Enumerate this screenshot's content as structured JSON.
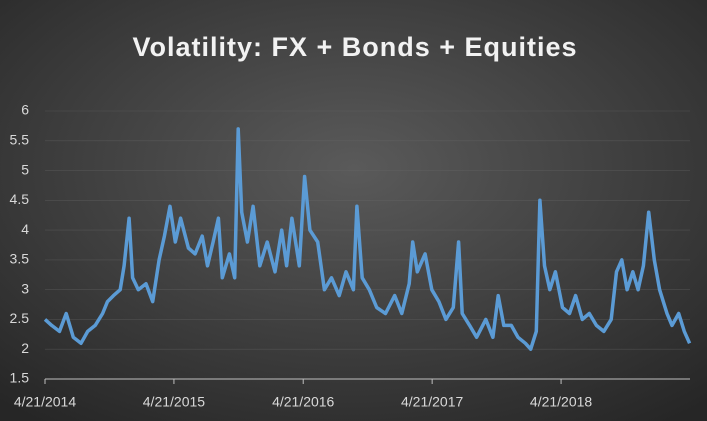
{
  "chart_data": {
    "type": "line",
    "title": "Volatility: FX + Bonds + Equities",
    "x": [
      "4/21/2014",
      "5/10/2014",
      "6/1/2014",
      "6/20/2014",
      "7/10/2014",
      "8/1/2014",
      "8/20/2014",
      "9/10/2014",
      "10/1/2014",
      "10/15/2014",
      "11/1/2014",
      "11/20/2014",
      "12/1/2014",
      "12/15/2014",
      "12/25/2014",
      "1/10/2015",
      "2/1/2015",
      "2/20/2015",
      "3/10/2015",
      "3/25/2015",
      "4/10/2015",
      "4/25/2015",
      "5/10/2015",
      "6/1/2015",
      "6/20/2015",
      "7/10/2015",
      "7/25/2015",
      "8/10/2015",
      "8/25/2015",
      "9/5/2015",
      "9/25/2015",
      "10/10/2015",
      "10/20/2015",
      "10/30/2015",
      "11/15/2015",
      "12/1/2015",
      "12/20/2015",
      "1/10/2016",
      "2/1/2016",
      "2/20/2016",
      "3/5/2016",
      "3/20/2016",
      "4/10/2016",
      "4/25/2016",
      "5/10/2016",
      "6/1/2016",
      "6/20/2016",
      "7/10/2016",
      "8/1/2016",
      "8/20/2016",
      "9/10/2016",
      "9/20/2016",
      "10/5/2016",
      "10/25/2016",
      "11/15/2016",
      "12/10/2016",
      "1/5/2017",
      "1/25/2017",
      "2/15/2017",
      "2/25/2017",
      "3/10/2017",
      "4/1/2017",
      "4/20/2017",
      "5/10/2017",
      "5/30/2017",
      "6/20/2017",
      "7/5/2017",
      "7/15/2017",
      "8/5/2017",
      "8/25/2017",
      "9/20/2017",
      "10/10/2017",
      "10/25/2017",
      "11/10/2017",
      "12/1/2017",
      "12/20/2017",
      "1/10/2018",
      "1/25/2018",
      "2/10/2018",
      "2/20/2018",
      "3/5/2018",
      "3/20/2018",
      "4/5/2018",
      "4/25/2018",
      "5/15/2018",
      "6/1/2018",
      "6/20/2018",
      "7/10/2018",
      "7/30/2018",
      "8/20/2018",
      "9/10/2018",
      "9/25/2018",
      "10/10/2018",
      "10/25/2018",
      "11/10/2018",
      "11/25/2018",
      "12/10/2018",
      "12/25/2018",
      "1/10/2019",
      "1/25/2019",
      "2/15/2019",
      "3/1/2019",
      "3/20/2019",
      "4/5/2019",
      "4/20/2019"
    ],
    "series": [
      {
        "color": "#5b9bd5",
        "values": [
          2.5,
          2.4,
          2.3,
          2.6,
          2.2,
          2.1,
          2.3,
          2.4,
          2.6,
          2.8,
          2.9,
          3.0,
          3.4,
          4.2,
          3.2,
          3.0,
          3.1,
          2.8,
          3.5,
          3.9,
          4.4,
          3.8,
          4.2,
          3.7,
          3.6,
          3.9,
          3.4,
          3.8,
          4.2,
          3.2,
          3.6,
          3.2,
          5.7,
          4.3,
          3.8,
          4.4,
          3.4,
          3.8,
          3.3,
          4.0,
          3.4,
          4.2,
          3.4,
          4.9,
          4.0,
          3.8,
          3.0,
          3.2,
          2.9,
          3.3,
          3.0,
          4.4,
          3.2,
          3.0,
          2.7,
          2.6,
          2.9,
          2.6,
          3.1,
          3.8,
          3.3,
          3.6,
          3.0,
          2.8,
          2.5,
          2.7,
          3.8,
          2.6,
          2.4,
          2.2,
          2.5,
          2.2,
          2.9,
          2.4,
          2.4,
          2.2,
          2.1,
          2.0,
          2.3,
          4.5,
          3.4,
          3.0,
          3.3,
          2.7,
          2.6,
          2.9,
          2.5,
          2.6,
          2.4,
          2.3,
          2.5,
          3.3,
          3.5,
          3.0,
          3.3,
          3.0,
          3.4,
          4.3,
          3.5,
          3.0,
          2.6,
          2.4,
          2.6,
          2.3,
          2.1
        ]
      }
    ],
    "xlim": [
      "4/21/2014",
      "4/21/2019"
    ],
    "xticks": [
      "4/21/2014",
      "4/21/2015",
      "4/21/2016",
      "4/21/2017",
      "4/21/2018"
    ],
    "ylim": [
      1.5,
      6
    ],
    "yticks": [
      1.5,
      2,
      2.5,
      3,
      3.5,
      4,
      4.5,
      5,
      {
        "value": 5.5,
        "label": "5.5"
      },
      6
    ],
    "grid": true
  }
}
